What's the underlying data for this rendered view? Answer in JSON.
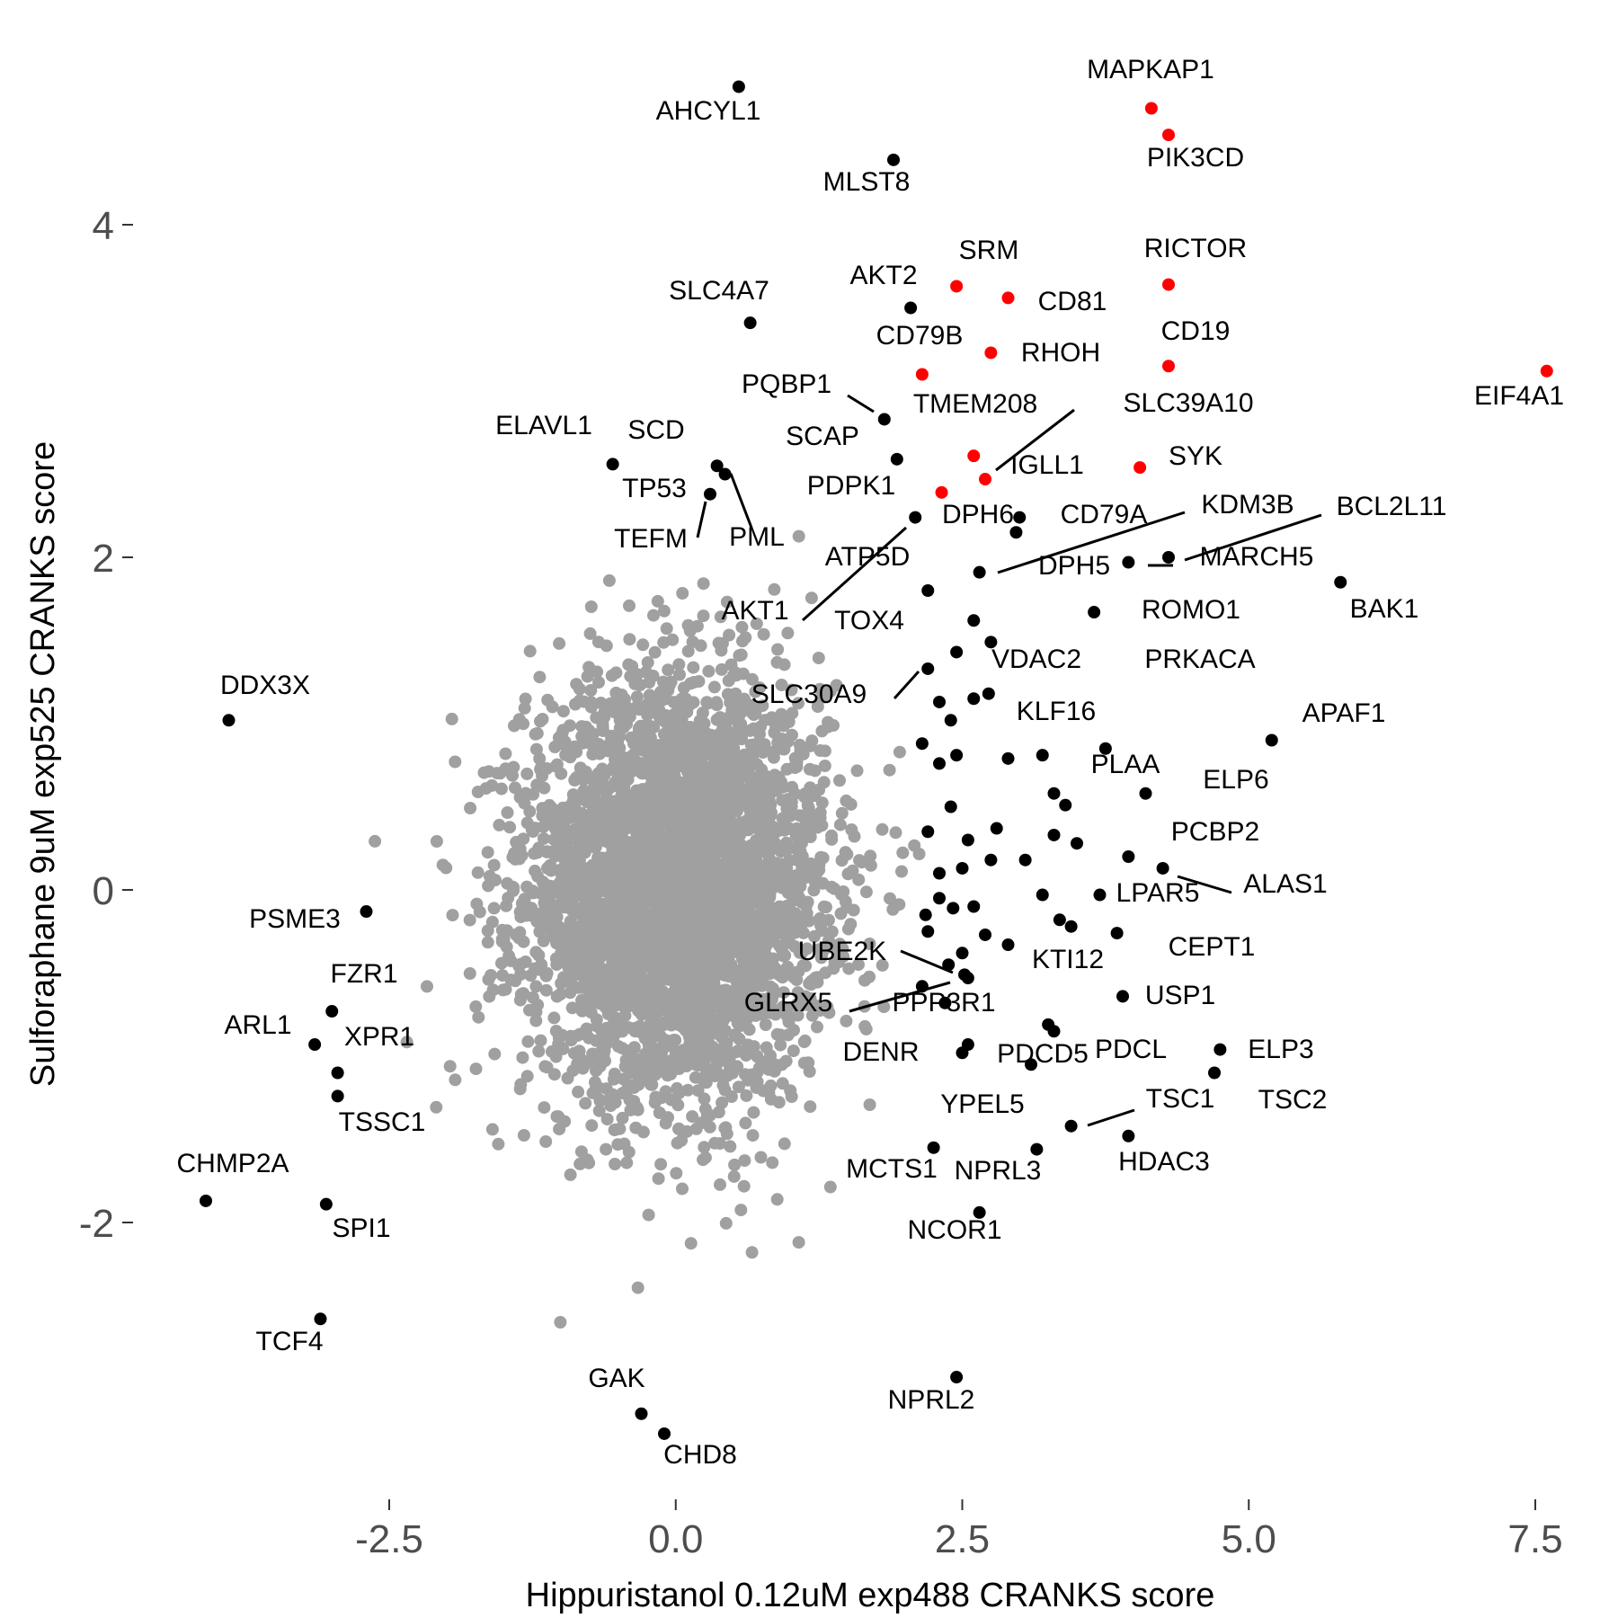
{
  "chart_data": {
    "type": "scatter",
    "title": "",
    "xlabel": "Hippuristanol 0.12uM exp488 CRANKS score",
    "ylabel": "Sulforaphane 9uM exp525 CRANKS score",
    "xlim": [
      -3.5,
      7.9
    ],
    "ylim": [
      -3.6,
      4.95
    ],
    "x_ticks": [
      -2.5,
      0.0,
      2.5,
      5.0,
      7.5
    ],
    "x_tick_labels": [
      "-2.5",
      "0.0",
      "2.5",
      "5.0",
      "7.5"
    ],
    "y_ticks": [
      -2,
      0,
      2,
      4
    ],
    "y_tick_labels": [
      "-2",
      "0",
      "2",
      "4"
    ],
    "grid": false,
    "legend": "none",
    "colors": {
      "background_cloud": "#a0a0a0",
      "highlight": "#ff0000",
      "labeled": "#000000",
      "tick_text": "#4d4d4d"
    },
    "background_cloud": {
      "description_count": 4000,
      "center": [
        0.0,
        0.0
      ],
      "sd": [
        0.65,
        0.62
      ]
    },
    "highlighted_points": [
      {
        "label": "MAPKAP1",
        "x": 4.15,
        "y": 4.7
      },
      {
        "label": "PIK3CD",
        "x": 4.3,
        "y": 4.54
      },
      {
        "label": "SRM",
        "x": 2.45,
        "y": 3.63
      },
      {
        "label": "CD81",
        "x": 2.9,
        "y": 3.56
      },
      {
        "label": "RICTOR",
        "x": 4.3,
        "y": 3.64
      },
      {
        "label": "CD79B",
        "x": 2.15,
        "y": 3.1
      },
      {
        "label": "RHOH",
        "x": 2.75,
        "y": 3.23
      },
      {
        "label": "CD19",
        "x": 4.3,
        "y": 3.15
      },
      {
        "label": "EIF4A1",
        "x": 7.6,
        "y": 3.12
      },
      {
        "label": "SLC39A10",
        "x": 2.6,
        "y": 2.61
      },
      {
        "label": "IGLL1",
        "x": 2.7,
        "y": 2.47
      },
      {
        "label": "SYK",
        "x": 4.05,
        "y": 2.54
      },
      {
        "label": "PDPK1",
        "x": 2.32,
        "y": 2.39
      }
    ],
    "labeled_points": [
      {
        "label": "AHCYL1",
        "x": 0.55,
        "y": 4.83
      },
      {
        "label": "MLST8",
        "x": 1.9,
        "y": 4.39
      },
      {
        "label": "AKT2",
        "x": 2.05,
        "y": 3.5
      },
      {
        "label": "SLC4A7",
        "x": 0.65,
        "y": 3.41
      },
      {
        "label": "PQBP1",
        "x": 1.82,
        "y": 2.83
      },
      {
        "label": "TMEM208",
        "x": 1.93,
        "y": 2.59
      },
      {
        "label": "ELAVL1",
        "x": -0.55,
        "y": 2.56
      },
      {
        "label": "SCD",
        "x": 0.36,
        "y": 2.55
      },
      {
        "label": "TP53",
        "x": 0.3,
        "y": 2.38
      },
      {
        "label": "PML",
        "x": 0.43,
        "y": 2.5
      },
      {
        "label": "AKT1",
        "x": 2.09,
        "y": 2.24
      },
      {
        "label": "DPH6",
        "x": 3.0,
        "y": 2.24
      },
      {
        "label": "CD79A",
        "x": 2.97,
        "y": 2.15
      },
      {
        "label": "DPH5",
        "x": 2.65,
        "y": 1.91
      },
      {
        "label": "KDM3B",
        "x": 3.95,
        "y": 1.97
      },
      {
        "label": "BCL2L11",
        "x": 4.3,
        "y": 2.0
      },
      {
        "label": "BAK1",
        "x": 5.8,
        "y": 1.85
      },
      {
        "label": "ROMO1",
        "x": 3.65,
        "y": 1.67
      },
      {
        "label": "APAF1",
        "x": 5.2,
        "y": 0.9
      },
      {
        "label": "PLAA",
        "x": 3.75,
        "y": 0.85
      },
      {
        "label": "ELP6",
        "x": 4.1,
        "y": 0.58
      },
      {
        "label": "PCBP2",
        "x": 3.95,
        "y": 0.2
      },
      {
        "label": "ALAS1",
        "x": 4.25,
        "y": 0.13
      },
      {
        "label": "LPAR5",
        "x": 3.7,
        "y": -0.03
      },
      {
        "label": "CEPT1",
        "x": 3.85,
        "y": -0.26
      },
      {
        "label": "KTI12",
        "x": 3.45,
        "y": -0.22
      },
      {
        "label": "UBE2K",
        "x": 2.38,
        "y": -0.45
      },
      {
        "label": "GLRX5",
        "x": 2.55,
        "y": -0.53
      },
      {
        "label": "PPP3R1",
        "x": 2.52,
        "y": -0.51
      },
      {
        "label": "USP1",
        "x": 3.9,
        "y": -0.64
      },
      {
        "label": "DENR",
        "x": 2.5,
        "y": -0.98
      },
      {
        "label": "PDCD5",
        "x": 2.55,
        "y": -0.93
      },
      {
        "label": "PDCL",
        "x": 3.25,
        "y": -0.81
      },
      {
        "label": "ELP3",
        "x": 4.75,
        "y": -0.96
      },
      {
        "label": "TSC2",
        "x": 4.7,
        "y": -1.1
      },
      {
        "label": "TSC1",
        "x": 3.45,
        "y": -1.42
      },
      {
        "label": "HDAC3",
        "x": 3.95,
        "y": -1.48
      },
      {
        "label": "NPRL3",
        "x": 3.15,
        "y": -1.56
      },
      {
        "label": "YPEL5",
        "x": 2.25,
        "y": -1.55
      },
      {
        "label": "NCOR1",
        "x": 2.65,
        "y": -1.94
      },
      {
        "label": "NPRL2",
        "x": 2.45,
        "y": -2.93
      },
      {
        "label": "GAK",
        "x": -0.3,
        "y": -3.15
      },
      {
        "label": "CHD8",
        "x": -0.1,
        "y": -3.27
      },
      {
        "label": "DDX3X",
        "x": -3.9,
        "y": 1.02
      },
      {
        "label": "PSME3",
        "x": -2.7,
        "y": -0.13
      },
      {
        "label": "FZR1",
        "x": -3.0,
        "y": -0.73
      },
      {
        "label": "ARL1",
        "x": -3.15,
        "y": -0.93
      },
      {
        "label": "XPR1",
        "x": -2.95,
        "y": -1.1
      },
      {
        "label": "TSSC1",
        "x": -2.95,
        "y": -1.24
      },
      {
        "label": "CHMP2A",
        "x": -4.1,
        "y": -1.87
      },
      {
        "label": "SPI1",
        "x": -3.05,
        "y": -1.89
      },
      {
        "label": "TCF4",
        "x": -3.1,
        "y": -2.58
      }
    ],
    "floating_labels": [
      "ATP5D",
      "SCAP",
      "TEFM",
      "TOX4",
      "SLC30A9",
      "VDAC2",
      "PRKACA",
      "KLF16",
      "MARCH5",
      "MCTS1"
    ],
    "unlabeled_black_points": [
      [
        2.2,
        1.8
      ],
      [
        2.45,
        1.43
      ],
      [
        2.6,
        1.62
      ],
      [
        2.75,
        1.49
      ],
      [
        2.3,
        1.13
      ],
      [
        2.2,
        1.33
      ],
      [
        2.4,
        1.02
      ],
      [
        2.6,
        1.15
      ],
      [
        2.73,
        1.18
      ],
      [
        2.15,
        0.88
      ],
      [
        2.3,
        0.76
      ],
      [
        2.45,
        0.81
      ],
      [
        2.9,
        0.79
      ],
      [
        3.2,
        0.81
      ],
      [
        3.3,
        0.58
      ],
      [
        3.4,
        0.51
      ],
      [
        2.4,
        0.5
      ],
      [
        2.55,
        0.3
      ],
      [
        2.2,
        0.35
      ],
      [
        2.8,
        0.37
      ],
      [
        3.05,
        0.18
      ],
      [
        3.3,
        0.33
      ],
      [
        3.5,
        0.28
      ],
      [
        2.3,
        0.1
      ],
      [
        2.5,
        0.13
      ],
      [
        2.75,
        0.18
      ],
      [
        3.2,
        -0.03
      ],
      [
        2.3,
        -0.05
      ],
      [
        2.42,
        -0.11
      ],
      [
        2.6,
        -0.1
      ],
      [
        2.18,
        -0.15
      ],
      [
        2.7,
        -0.27
      ],
      [
        2.9,
        -0.33
      ],
      [
        3.35,
        -0.18
      ],
      [
        2.2,
        -0.25
      ],
      [
        2.5,
        -0.38
      ],
      [
        2.15,
        -0.58
      ],
      [
        2.35,
        -0.68
      ],
      [
        3.3,
        -0.85
      ],
      [
        3.1,
        -1.05
      ]
    ]
  }
}
